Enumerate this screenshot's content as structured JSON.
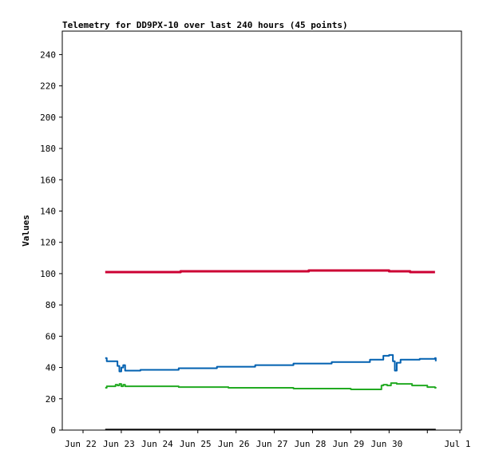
{
  "chart_data": {
    "type": "line",
    "title": "Telemetry for DD9PX-10 over last 240 hours (45 points)",
    "ylabel": "Values",
    "xlabel": "",
    "ylim": [
      0,
      255
    ],
    "yticks": [
      0,
      20,
      40,
      60,
      80,
      100,
      120,
      140,
      160,
      180,
      200,
      220,
      240
    ],
    "xlim": [
      0,
      9.85
    ],
    "xtick_positions": [
      0,
      1,
      2,
      3,
      4,
      5,
      6,
      7,
      8,
      9,
      9.85
    ],
    "xtick_labels": [
      "Jun 22",
      "Jun 23",
      "Jun 24",
      "Jun 25",
      "Jun 26",
      "Jun 27",
      "Jun 28",
      "Jun 29",
      "Jun 30",
      "",
      "Jul 1"
    ],
    "grid": false,
    "series": [
      {
        "color": "#cc0033",
        "width": 3,
        "x": [
          0.58,
          1.5,
          2.5,
          2.55,
          4.0,
          5.0,
          5.85,
          5.9,
          7.0,
          7.9,
          8.0,
          8.5,
          8.55,
          9.2
        ],
        "y": [
          101,
          101,
          101,
          101.5,
          101.5,
          101.5,
          101.5,
          102,
          102,
          102,
          101.5,
          101.5,
          101,
          101
        ]
      },
      {
        "color": "#0060b0",
        "width": 2,
        "x": [
          0.58,
          0.62,
          0.85,
          0.9,
          0.95,
          1.0,
          1.05,
          1.1,
          1.5,
          2.5,
          3.5,
          4.5,
          5.5,
          6.5,
          7.5,
          7.85,
          8.0,
          8.05,
          8.1,
          8.15,
          8.2,
          8.3,
          8.5,
          8.8,
          9.2,
          9.22
        ],
        "y": [
          46,
          44,
          44,
          41,
          37.5,
          40,
          41.5,
          38,
          38.5,
          39.5,
          40.5,
          41.5,
          42.5,
          43.5,
          45,
          47.5,
          48,
          48,
          44,
          38,
          43,
          45,
          45,
          45.5,
          46,
          44
        ]
      },
      {
        "color": "#22aa22",
        "width": 2,
        "x": [
          0.58,
          0.62,
          0.8,
          0.85,
          0.9,
          0.95,
          1.0,
          1.05,
          1.1,
          1.5,
          2.5,
          3.8,
          5.0,
          5.5,
          6.5,
          7.0,
          7.75,
          7.8,
          7.85,
          7.95,
          8.05,
          8.2,
          8.3,
          8.6,
          9.0,
          9.2,
          9.22
        ],
        "y": [
          27,
          28,
          28,
          29,
          28.5,
          29.5,
          28,
          29,
          28,
          28,
          27.5,
          27,
          27,
          26.5,
          26.5,
          26,
          26,
          28.5,
          29,
          28.5,
          30,
          29.5,
          29.5,
          28.5,
          27.5,
          27,
          27.5
        ]
      },
      {
        "color": "#000000",
        "width": 2,
        "x": [
          0.58,
          9.22
        ],
        "y": [
          0.3,
          0.3
        ]
      }
    ]
  }
}
